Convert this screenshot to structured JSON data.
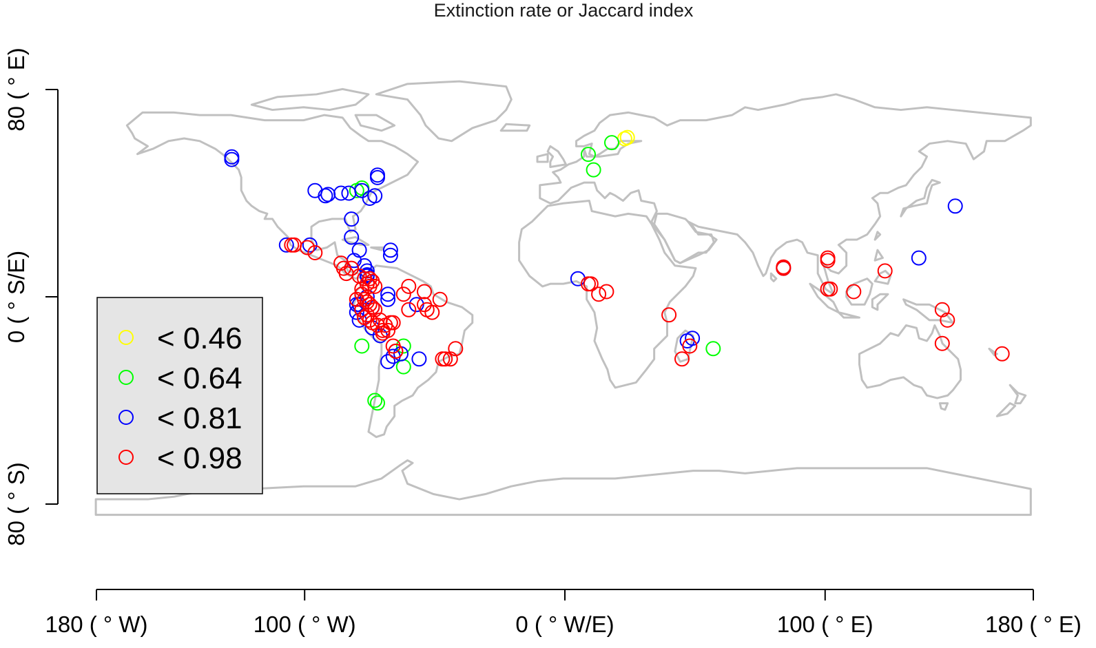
{
  "chart_data": {
    "type": "scatter",
    "title": "Extinction rate or Jaccard index",
    "xlabel": "",
    "ylabel": "",
    "xlim": [
      -180,
      180
    ],
    "ylim": [
      -80,
      80
    ],
    "x_ticks": [
      {
        "value": -180,
        "label": "180 ( ° W)"
      },
      {
        "value": -100,
        "label": "100 ( ° W)"
      },
      {
        "value": 0,
        "label": "0 ( ° W/E)"
      },
      {
        "value": 100,
        "label": "100 ( ° E)"
      },
      {
        "value": 180,
        "label": "180 ( ° E)"
      }
    ],
    "y_ticks": [
      {
        "value": 80,
        "label": "80 ( ° E)"
      },
      {
        "value": 0,
        "label": "0 ( ° S/E)"
      },
      {
        "value": -80,
        "label": "80 ( ° S)"
      }
    ],
    "legend_position": "left",
    "legend": [
      {
        "label": "< 0.46",
        "color": "#ffff00"
      },
      {
        "label": "< 0.64",
        "color": "#00ff00"
      },
      {
        "label": "< 0.81",
        "color": "#0000ff"
      },
      {
        "label": "< 0.98",
        "color": "#ff0000"
      }
    ],
    "land_color": "#c0c0c0",
    "series": [
      {
        "color": "#ffff00",
        "points": [
          [
            23,
            61
          ],
          [
            24,
            61.5
          ]
        ]
      },
      {
        "color": "#00ff00",
        "points": [
          [
            9,
            55
          ],
          [
            18,
            59.5
          ],
          [
            11,
            49
          ],
          [
            -80,
            41
          ],
          [
            -78,
            42
          ],
          [
            -62,
            -19
          ],
          [
            -62,
            -27
          ],
          [
            -73,
            -40
          ],
          [
            -72,
            -41
          ],
          [
            57,
            -20
          ],
          [
            -78,
            -19
          ]
        ]
      },
      {
        "color": "#0000ff",
        "points": [
          [
            -128,
            54
          ],
          [
            -128,
            53
          ],
          [
            -96,
            41
          ],
          [
            -92,
            39
          ],
          [
            -91,
            39.5
          ],
          [
            -86,
            40
          ],
          [
            -83,
            40
          ],
          [
            -78,
            41
          ],
          [
            -75,
            38
          ],
          [
            -73,
            39
          ],
          [
            -72,
            47
          ],
          [
            -72,
            46
          ],
          [
            -82,
            30
          ],
          [
            -82,
            23
          ],
          [
            -79,
            18
          ],
          [
            -81,
            14
          ],
          [
            -76,
            10
          ],
          [
            -76,
            8
          ],
          [
            -67,
            18
          ],
          [
            -67,
            16
          ],
          [
            -98,
            20
          ],
          [
            -107,
            20
          ],
          [
            -68,
            1
          ],
          [
            -57,
            -3
          ],
          [
            -76,
            8.5
          ],
          [
            -68,
            -1
          ],
          [
            -76,
            0
          ],
          [
            -79,
            -3
          ],
          [
            -80,
            -6
          ],
          [
            -79,
            -9
          ],
          [
            -80,
            -3
          ],
          [
            -74,
            -12
          ],
          [
            -71,
            -15
          ],
          [
            -66,
            -23
          ],
          [
            -63,
            -22
          ],
          [
            -56,
            -24
          ],
          [
            -68,
            -25
          ],
          [
            5,
            7
          ],
          [
            47,
            -17
          ],
          [
            49,
            -16
          ],
          [
            84,
            11
          ],
          [
            136,
            15
          ],
          [
            150,
            35
          ],
          [
            -77,
            12
          ],
          [
            -74,
            -4
          ]
        ]
      },
      {
        "color": "#ff0000",
        "points": [
          [
            -105,
            20
          ],
          [
            -104,
            20
          ],
          [
            -99,
            19
          ],
          [
            -96,
            17
          ],
          [
            -86,
            13
          ],
          [
            -85,
            11
          ],
          [
            -84,
            9
          ],
          [
            -82,
            11
          ],
          [
            -79,
            8
          ],
          [
            -77,
            7
          ],
          [
            -75,
            7
          ],
          [
            -76,
            5
          ],
          [
            -78,
            3
          ],
          [
            -73,
            4
          ],
          [
            -74,
            6
          ],
          [
            -75,
            4
          ],
          [
            -78,
            1
          ],
          [
            -80,
            -1
          ],
          [
            -77,
            -1
          ],
          [
            -76,
            -2
          ],
          [
            -75,
            -3
          ],
          [
            -74,
            -4
          ],
          [
            -73,
            -5
          ],
          [
            -78,
            -5
          ],
          [
            -76,
            -7
          ],
          [
            -77,
            -8
          ],
          [
            -75,
            -9
          ],
          [
            -74,
            -10
          ],
          [
            -72,
            -11
          ],
          [
            -70,
            -13
          ],
          [
            -70,
            -14
          ],
          [
            -69,
            -11
          ],
          [
            -67,
            -10
          ],
          [
            -68,
            -13
          ],
          [
            -66,
            -10
          ],
          [
            -71,
            -9
          ],
          [
            -65,
            -21
          ],
          [
            -60,
            -5
          ],
          [
            -54,
            -3
          ],
          [
            -53,
            -5
          ],
          [
            -48,
            -1
          ],
          [
            -51,
            -6
          ],
          [
            -62,
            1
          ],
          [
            -60,
            4
          ],
          [
            -54,
            2
          ],
          [
            -44,
            -24
          ],
          [
            -46,
            -24
          ],
          [
            -47,
            -24
          ],
          [
            -42,
            -20
          ],
          [
            -66,
            -19
          ],
          [
            -65,
            -21
          ],
          [
            9,
            5
          ],
          [
            10,
            5
          ],
          [
            13,
            1
          ],
          [
            16,
            2
          ],
          [
            40,
            -7
          ],
          [
            45,
            -24
          ],
          [
            48,
            -19
          ],
          [
            84,
            11
          ],
          [
            84,
            11.5
          ],
          [
            101,
            14
          ],
          [
            101,
            15
          ],
          [
            101,
            3
          ],
          [
            102,
            3
          ],
          [
            111,
            2
          ],
          [
            123,
            10
          ],
          [
            145,
            -5
          ],
          [
            147,
            -9
          ],
          [
            145,
            -18
          ],
          [
            168,
            -22
          ]
        ]
      }
    ]
  }
}
